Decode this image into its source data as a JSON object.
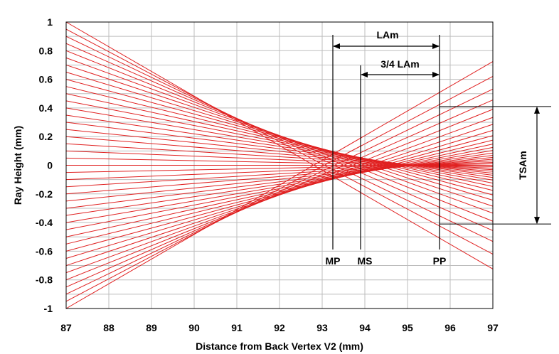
{
  "chart_data": {
    "type": "line",
    "title": "",
    "xlabel": "Distance from Back Vertex V2 (mm)",
    "ylabel": "Ray Height (mm)",
    "xlim": [
      87,
      97
    ],
    "ylim": [
      -1,
      1
    ],
    "x_ticks": [
      "87",
      "88",
      "89",
      "90",
      "91",
      "92",
      "93",
      "94",
      "95",
      "96",
      "97"
    ],
    "y_ticks": [
      "1",
      "0.8",
      "0.6",
      "0.4",
      "0.2",
      "0",
      "-0.2",
      "-0.4",
      "-0.6",
      "-0.8",
      "-1"
    ],
    "grid": true,
    "line_color": "#e02020",
    "rays": {
      "x_start": 87,
      "x_end": 97,
      "start_heights": [
        1.0,
        0.95,
        0.9,
        0.85,
        0.8,
        0.75,
        0.7,
        0.65,
        0.6,
        0.55,
        0.5,
        0.45,
        0.4,
        0.35,
        0.3,
        0.25,
        0.2,
        0.15,
        0.1,
        0.05,
        0.0,
        -0.05,
        -0.1,
        -0.15,
        -0.2,
        -0.25,
        -0.3,
        -0.35,
        -0.4,
        -0.45,
        -0.5,
        -0.55,
        -0.6,
        -0.65,
        -0.7,
        -0.75,
        -0.8,
        -0.85,
        -0.9,
        -0.95,
        -1.0
      ],
      "paraxial_focus": 95.35,
      "longitudinal_aberration_at_margin": 2.55
    },
    "annotations": {
      "lam_label": "LAm",
      "three_quarter_label": "3/4 LAm",
      "tsam_label": "TSAm",
      "mp_label": "MP",
      "ms_label": "MS",
      "pp_label": "PP",
      "mp_x": 93.25,
      "ms_x": 93.9,
      "pp_x": 95.75,
      "tsam_top": 0.41,
      "tsam_bottom": -0.41
    }
  }
}
